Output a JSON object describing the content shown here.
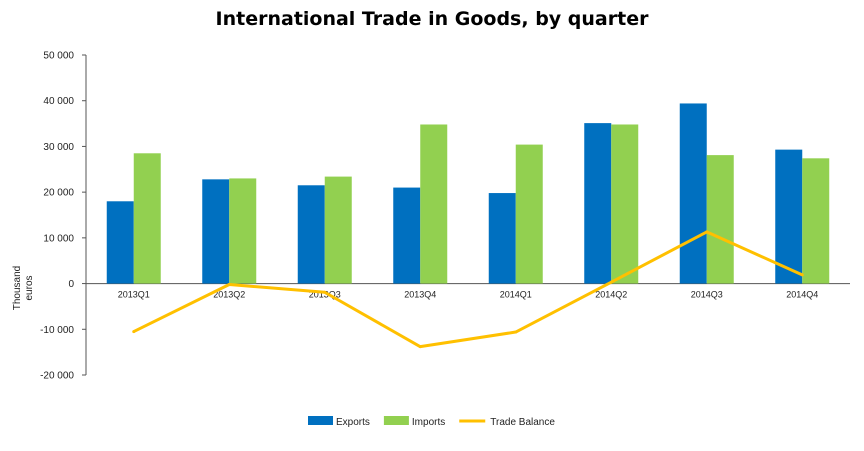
{
  "chart_data": {
    "type": "bar",
    "title": "International Trade in Goods,  by quarter",
    "ylabel": "Thousand euros",
    "ylabel_lines": [
      "Thousand",
      "euros"
    ],
    "categories": [
      "2013Q1",
      "2013Q2",
      "2013Q3",
      "2013Q4",
      "2014Q1",
      "2014Q2",
      "2014Q3",
      "2014Q4"
    ],
    "ylim": [
      -20000,
      50000
    ],
    "yticks": [
      50000,
      40000,
      30000,
      20000,
      10000,
      0,
      -10000,
      -20000
    ],
    "ytick_labels": [
      "50 000",
      "40 000",
      "30 000",
      "20 000",
      "10 000",
      "0",
      "-10 000",
      "-20 000"
    ],
    "grid": false,
    "legend_position": "bottom",
    "series": [
      {
        "name": "Exports",
        "type": "bar",
        "color": "#0070c0",
        "values": [
          18000,
          22800,
          21500,
          21000,
          19800,
          35100,
          39400,
          29300
        ]
      },
      {
        "name": "Imports",
        "type": "bar",
        "color": "#92d050",
        "values": [
          28500,
          23000,
          23400,
          34800,
          30400,
          34800,
          28100,
          27400
        ]
      },
      {
        "name": "Trade Balance",
        "type": "line",
        "color": "#ffc000",
        "values": [
          -10500,
          -200,
          -1900,
          -13800,
          -10600,
          300,
          11300,
          1900
        ]
      }
    ]
  }
}
